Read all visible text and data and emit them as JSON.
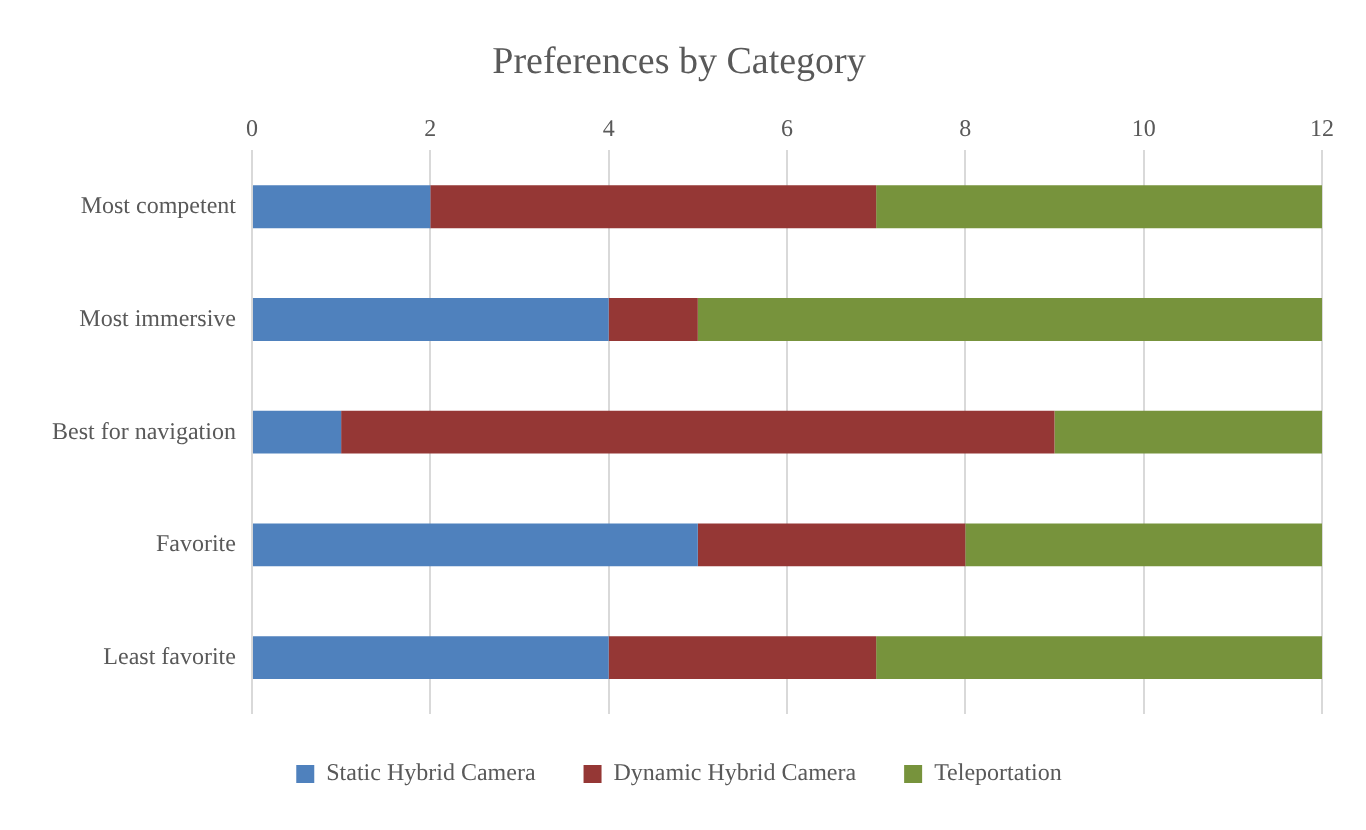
{
  "chart_data": {
    "type": "bar",
    "title": "Preferences by Category",
    "orientation": "horizontal",
    "stacked": true,
    "categories": [
      "Most competent",
      "Most immersive",
      "Best for navigation",
      "Favorite",
      "Least favorite"
    ],
    "series": [
      {
        "name": "Static Hybrid Camera",
        "color": "#4f81bd",
        "values": [
          2,
          4,
          1,
          5,
          4
        ]
      },
      {
        "name": "Dynamic Hybrid Camera",
        "color": "#953735",
        "values": [
          5,
          1,
          8,
          3,
          3
        ]
      },
      {
        "name": "Teleportation",
        "color": "#77933c",
        "values": [
          5,
          7,
          3,
          4,
          5
        ]
      }
    ],
    "xlim": [
      0,
      12
    ],
    "xticks": [
      0,
      2,
      4,
      6,
      8,
      10,
      12
    ],
    "grid": "x",
    "legend": "bottom"
  }
}
